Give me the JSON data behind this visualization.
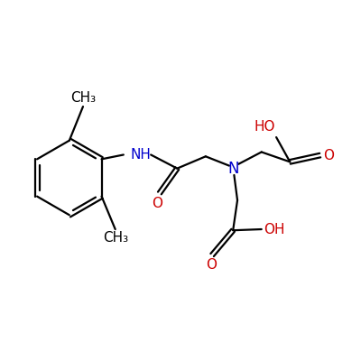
{
  "bg_color": "#ffffff",
  "line_color": "#000000",
  "n_color": "#0000cd",
  "o_color": "#cc0000",
  "bond_lw": 1.6,
  "font_size": 11,
  "figsize": [
    4.0,
    4.0
  ],
  "dpi": 100,
  "xlim": [
    0.3,
    6.8
  ],
  "ylim": [
    0.5,
    4.5
  ]
}
